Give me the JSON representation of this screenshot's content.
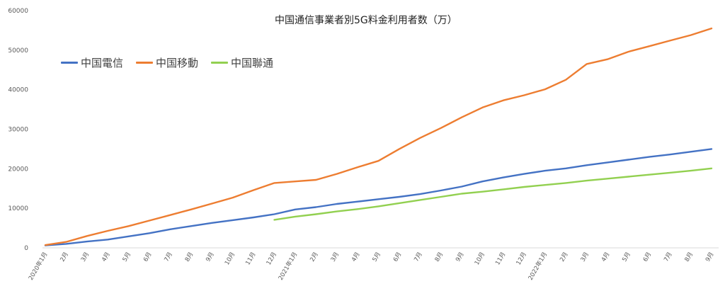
{
  "chart_data": {
    "type": "line",
    "title": "中国通信事業者別5G料金利用者数（万）",
    "x": [
      "2020年1月",
      "2月",
      "3月",
      "4月",
      "5月",
      "6月",
      "7月",
      "8月",
      "9月",
      "10月",
      "11月",
      "12月",
      "2021年1月",
      "2月",
      "3月",
      "4月",
      "5月",
      "6月",
      "7月",
      "8月",
      "9月",
      "10月",
      "11月",
      "12月",
      "2022年1月",
      "2月",
      "3月",
      "4月",
      "5月",
      "6月",
      "7月",
      "8月",
      "9月"
    ],
    "y_ticks": [
      0,
      10000,
      20000,
      30000,
      40000,
      50000,
      60000
    ],
    "ylim": [
      0,
      60000
    ],
    "grid": false,
    "legend_position": "top-left",
    "series": [
      {
        "name": "中国電信",
        "color": "#4472C4",
        "values": [
          600,
          1000,
          1600,
          2100,
          2900,
          3700,
          4700,
          5500,
          6300,
          7000,
          7700,
          8500,
          9700,
          10300,
          11100,
          11700,
          12300,
          12900,
          13600,
          14500,
          15500,
          16800,
          17800,
          18700,
          19500,
          20100,
          20900,
          21600,
          22300,
          23000,
          23600,
          24300,
          25000
        ]
      },
      {
        "name": "中国移動",
        "color": "#ED7D31",
        "values": [
          700,
          1500,
          3000,
          4300,
          5500,
          6900,
          8300,
          9700,
          11200,
          12700,
          14600,
          16400,
          16800,
          17200,
          18700,
          20400,
          22000,
          25000,
          27800,
          30300,
          33000,
          35500,
          37300,
          38600,
          40100,
          42500,
          46500,
          47700,
          49600,
          51000,
          52400,
          53800,
          55500
        ]
      },
      {
        "name": "中国聯通",
        "color": "#92D050",
        "values": [
          null,
          null,
          null,
          null,
          null,
          null,
          null,
          null,
          null,
          null,
          null,
          7100,
          7900,
          8500,
          9200,
          9800,
          10500,
          11300,
          12100,
          12900,
          13700,
          14200,
          14800,
          15400,
          15900,
          16400,
          17000,
          17500,
          18000,
          18500,
          19000,
          19500,
          20100
        ]
      }
    ]
  }
}
